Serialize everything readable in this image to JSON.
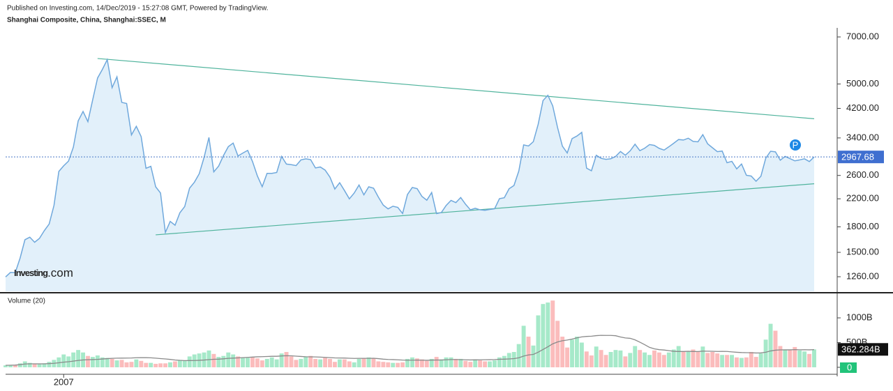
{
  "header": {
    "published": "Published on Investing.com, 14/Dec/2019 - 15:27:08 GMT, Powered by TradingView."
  },
  "logo": {
    "brand": "Investing",
    "suffix": ".com",
    "marker": "P"
  },
  "chart_data": [
    {
      "type": "line",
      "title": "Shanghai Composite, China, Shanghai:SSEC, M",
      "log_scale": true,
      "color": "#6fa8dc",
      "fill": "#e2f0fa",
      "trend_color": "#4fb39c",
      "ylim": [
        1135,
        7285
      ],
      "yticks": [
        {
          "value": 1260,
          "label": "1260.00"
        },
        {
          "value": 1500,
          "label": "1500.00"
        },
        {
          "value": 1800,
          "label": "1800.00"
        },
        {
          "value": 2200,
          "label": "2200.00"
        },
        {
          "value": 2600,
          "label": "2600.00"
        },
        {
          "value": 3400,
          "label": "3400.00"
        },
        {
          "value": 4200,
          "label": "4200.00"
        },
        {
          "value": 5000,
          "label": "5000.00"
        },
        {
          "value": 7000,
          "label": "7000.00"
        }
      ],
      "categories": [
        null,
        null,
        null,
        null,
        null,
        null,
        null,
        null,
        null,
        null,
        null,
        null,
        "2007",
        null,
        null,
        null,
        null,
        null,
        null,
        null,
        null,
        null,
        null,
        null,
        null,
        null,
        null,
        null,
        null,
        null,
        null,
        null,
        null,
        null,
        null,
        null,
        null,
        null,
        null,
        null,
        null,
        null,
        null,
        null,
        null,
        null,
        null,
        null,
        null,
        null,
        null,
        null,
        null,
        null,
        null,
        null,
        null,
        null,
        null,
        null,
        null,
        null,
        null,
        null,
        null,
        null,
        null,
        null,
        null,
        null,
        null,
        null,
        null,
        null,
        null,
        null,
        null,
        null,
        null,
        null,
        null,
        null,
        null,
        null,
        null,
        null,
        null,
        null,
        null,
        null,
        null,
        null,
        null,
        null,
        null,
        null,
        null,
        null,
        null,
        null,
        null,
        null,
        null,
        null,
        null,
        null,
        null,
        null,
        null,
        null,
        null,
        null,
        null,
        null,
        null,
        null,
        null,
        null,
        null,
        null,
        null,
        null,
        null,
        null,
        null,
        null,
        null,
        null,
        null,
        null,
        null,
        null,
        null,
        null,
        null,
        null,
        null,
        null,
        null,
        null,
        null,
        null,
        null,
        null,
        null,
        null,
        null,
        null,
        null,
        null,
        null,
        null,
        null,
        null,
        null,
        null,
        null,
        null,
        null,
        null,
        null,
        null,
        null,
        null,
        null,
        null,
        null,
        null
      ],
      "values": [
        1258,
        1299,
        1298,
        1440,
        1642,
        1672,
        1612,
        1658,
        1752,
        1837,
        2099,
        2675,
        2786,
        2881,
        3183,
        3841,
        4109,
        3820,
        4471,
        5218,
        5552,
        5954,
        4871,
        5262,
        4383,
        4348,
        3473,
        3693,
        3433,
        2736,
        2775,
        2397,
        2293,
        1729,
        1871,
        1821,
        1991,
        2082,
        2373,
        2477,
        2632,
        2959,
        3412,
        2667,
        2779,
        2996,
        3195,
        3277,
        2989,
        3051,
        3110,
        2871,
        2592,
        2398,
        2638,
        2639,
        2656,
        2979,
        2820,
        2808,
        2790,
        2905,
        2928,
        2911,
        2743,
        2762,
        2701,
        2568,
        2359,
        2468,
        2333,
        2199,
        2292,
        2428,
        2263,
        2397,
        2373,
        2226,
        2103,
        2047,
        2086,
        2069,
        1980,
        2269,
        2385,
        2366,
        2237,
        2178,
        2301,
        1979,
        1994,
        2098,
        2175,
        2141,
        2220,
        2116,
        2033,
        2056,
        2033,
        2026,
        2039,
        2048,
        2202,
        2217,
        2364,
        2420,
        2683,
        3235,
        3210,
        3310,
        3748,
        4441,
        4612,
        4277,
        3664,
        3206,
        3053,
        3383,
        3446,
        3539,
        2738,
        2688,
        3004,
        2938,
        2917,
        2930,
        2979,
        3085,
        3005,
        3100,
        3250,
        3104,
        3159,
        3242,
        3223,
        3155,
        3117,
        3192,
        3273,
        3361,
        3349,
        3393,
        3317,
        3307,
        3481,
        3259,
        3169,
        3082,
        3095,
        2847,
        2876,
        2725,
        2821,
        2603,
        2588,
        2494,
        2585,
        2941,
        3091,
        3078,
        2899,
        2979,
        2933,
        2886,
        2905,
        2929,
        2871,
        2967.68
      ],
      "trendlines": [
        {
          "from": [
            19,
            6000
          ],
          "to": [
            167,
            3900
          ]
        },
        {
          "from": [
            31,
            1700
          ],
          "to": [
            167,
            2450
          ]
        }
      ]
    },
    {
      "type": "bar",
      "title": "Volume (20)",
      "up_color": "#a6e9c9",
      "down_color": "#fbbcbc",
      "ma_color": "#8a8a8a",
      "ma_period": 20,
      "ylim": [
        0,
        1480
      ],
      "yticks": [
        0,
        {
          "value": 500,
          "label": "500B"
        },
        {
          "value": 1000,
          "label": "1000B"
        }
      ],
      "last_value_label": "362.284B",
      "values": [
        40,
        45,
        50,
        80,
        120,
        90,
        70,
        60,
        80,
        110,
        150,
        200,
        260,
        220,
        300,
        350,
        300,
        230,
        210,
        240,
        200,
        190,
        170,
        140,
        150,
        100,
        110,
        160,
        130,
        90,
        90,
        70,
        80,
        80,
        100,
        120,
        150,
        140,
        220,
        260,
        280,
        300,
        340,
        270,
        210,
        230,
        300,
        260,
        220,
        190,
        190,
        200,
        180,
        140,
        170,
        200,
        160,
        280,
        310,
        220,
        150,
        170,
        220,
        230,
        170,
        160,
        190,
        170,
        110,
        160,
        160,
        120,
        100,
        170,
        190,
        200,
        180,
        120,
        110,
        100,
        90,
        90,
        100,
        170,
        200,
        180,
        160,
        130,
        170,
        210,
        160,
        200,
        200,
        170,
        170,
        130,
        110,
        160,
        140,
        120,
        120,
        140,
        200,
        230,
        290,
        310,
        470,
        840,
        620,
        440,
        1050,
        1280,
        1310,
        1350,
        940,
        620,
        400,
        560,
        620,
        500,
        320,
        240,
        420,
        350,
        250,
        310,
        350,
        340,
        220,
        290,
        430,
        350,
        300,
        250,
        340,
        300,
        250,
        300,
        360,
        430,
        310,
        310,
        360,
        320,
        420,
        290,
        310,
        280,
        250,
        250,
        250,
        200,
        190,
        200,
        310,
        210,
        280,
        560,
        880,
        740,
        430,
        350,
        350,
        410,
        340,
        320,
        270,
        362.284
      ]
    }
  ]
}
